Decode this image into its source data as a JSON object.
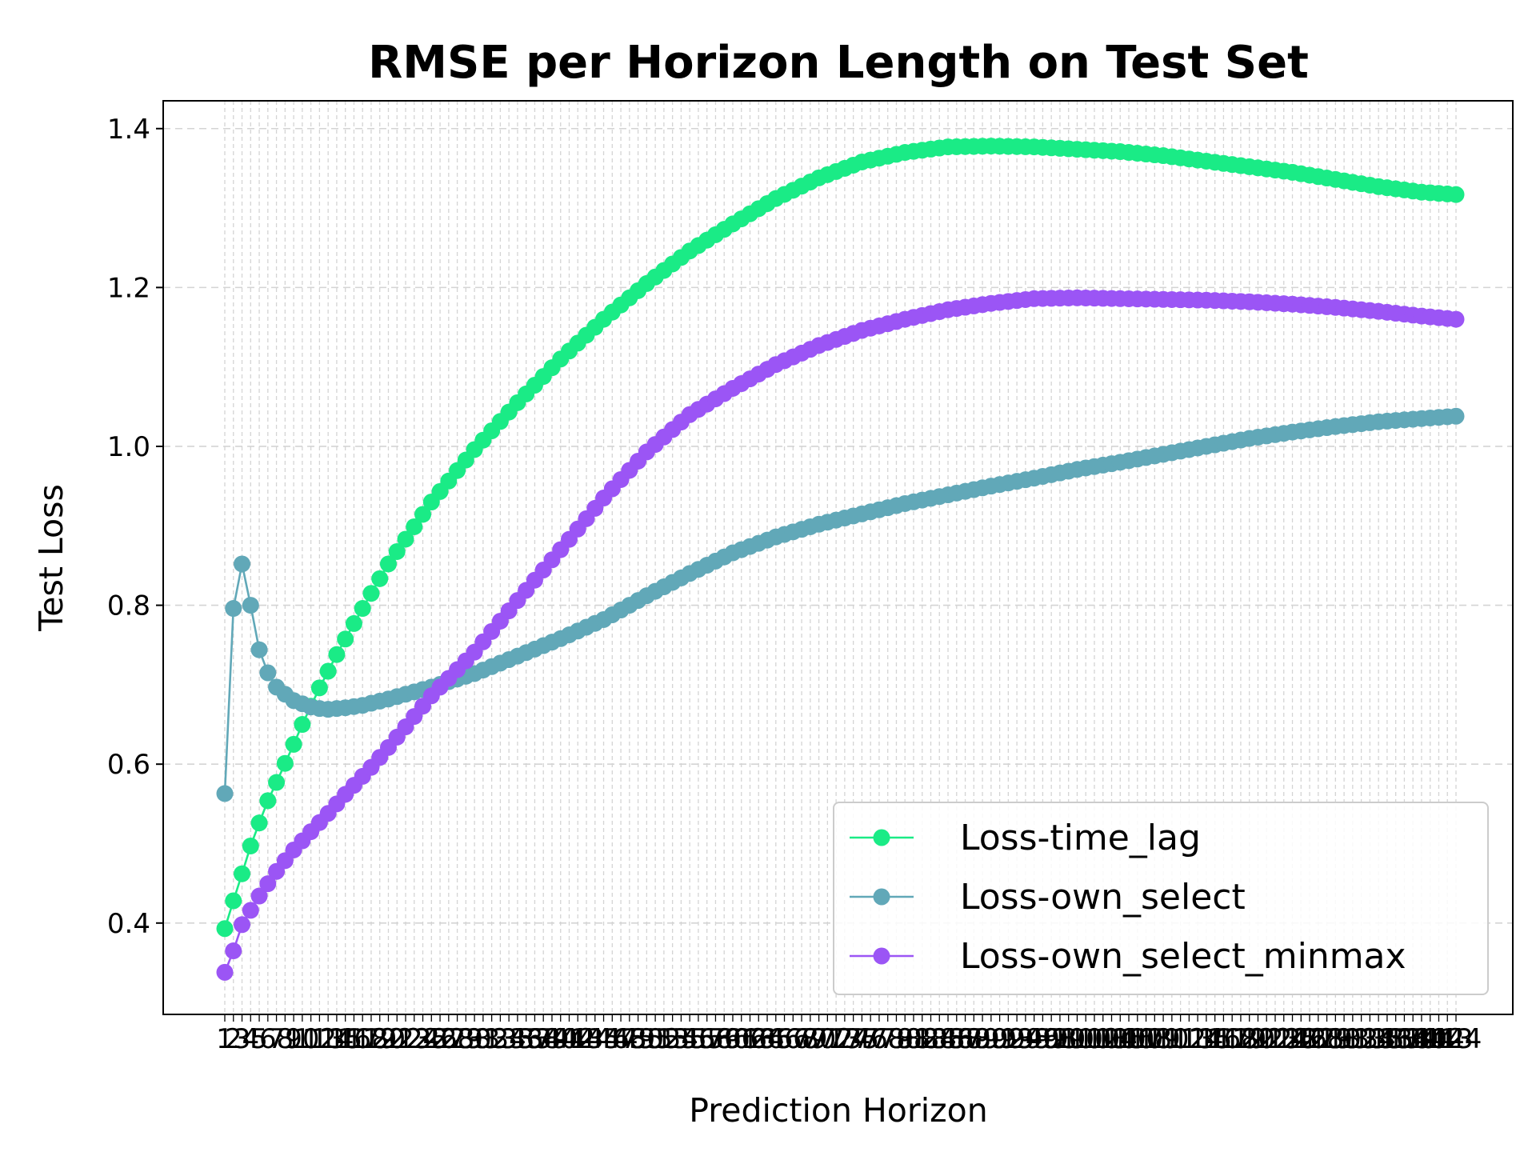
{
  "chart_data": {
    "type": "line",
    "title": "RMSE per Horizon Length on Test Set",
    "xlabel": "Prediction Horizon",
    "ylabel": "Test Loss",
    "xlim": [
      1,
      144
    ],
    "ylim": [
      0.285,
      1.435
    ],
    "yticks": [
      0.4,
      0.6,
      0.8,
      1.0,
      1.2,
      1.4
    ],
    "ytick_labels": [
      "0.4",
      "0.6",
      "0.8",
      "1.0",
      "1.2",
      "1.4"
    ],
    "grid": true,
    "legend_position": "lower-right",
    "markers": true,
    "series": [
      {
        "name": "Loss-time_lag",
        "color": "#1aeb86",
        "anchors": [
          [
            1,
            0.393
          ],
          [
            2,
            0.428
          ],
          [
            3,
            0.462
          ],
          [
            4,
            0.497
          ],
          [
            5,
            0.526
          ],
          [
            6,
            0.554
          ],
          [
            7,
            0.577
          ],
          [
            8,
            0.601
          ],
          [
            9,
            0.625
          ],
          [
            10,
            0.65
          ],
          [
            12,
            0.696
          ],
          [
            14,
            0.738
          ],
          [
            16,
            0.777
          ],
          [
            18,
            0.815
          ],
          [
            20,
            0.852
          ],
          [
            25,
            0.93
          ],
          [
            30,
            0.996
          ],
          [
            35,
            1.055
          ],
          [
            40,
            1.11
          ],
          [
            45,
            1.16
          ],
          [
            50,
            1.205
          ],
          [
            55,
            1.246
          ],
          [
            60,
            1.28
          ],
          [
            65,
            1.312
          ],
          [
            70,
            1.338
          ],
          [
            75,
            1.358
          ],
          [
            80,
            1.37
          ],
          [
            85,
            1.377
          ],
          [
            90,
            1.378
          ],
          [
            95,
            1.377
          ],
          [
            100,
            1.374
          ],
          [
            105,
            1.371
          ],
          [
            110,
            1.366
          ],
          [
            115,
            1.359
          ],
          [
            120,
            1.352
          ],
          [
            125,
            1.345
          ],
          [
            130,
            1.336
          ],
          [
            135,
            1.327
          ],
          [
            140,
            1.32
          ],
          [
            144,
            1.317
          ]
        ]
      },
      {
        "name": "Loss-own_select",
        "color": "#61a8b8",
        "anchors": [
          [
            1,
            0.563
          ],
          [
            2,
            0.796
          ],
          [
            3,
            0.852
          ],
          [
            4,
            0.8
          ],
          [
            5,
            0.744
          ],
          [
            6,
            0.715
          ],
          [
            7,
            0.697
          ],
          [
            8,
            0.688
          ],
          [
            9,
            0.68
          ],
          [
            10,
            0.676
          ],
          [
            11,
            0.672
          ],
          [
            12,
            0.67
          ],
          [
            13,
            0.669
          ],
          [
            15,
            0.671
          ],
          [
            17,
            0.674
          ],
          [
            20,
            0.682
          ],
          [
            25,
            0.697
          ],
          [
            30,
            0.714
          ],
          [
            35,
            0.736
          ],
          [
            40,
            0.758
          ],
          [
            45,
            0.782
          ],
          [
            50,
            0.812
          ],
          [
            55,
            0.84
          ],
          [
            60,
            0.866
          ],
          [
            65,
            0.886
          ],
          [
            70,
            0.902
          ],
          [
            75,
            0.915
          ],
          [
            80,
            0.928
          ],
          [
            85,
            0.939
          ],
          [
            90,
            0.95
          ],
          [
            95,
            0.96
          ],
          [
            100,
            0.971
          ],
          [
            105,
            0.98
          ],
          [
            110,
            0.99
          ],
          [
            115,
            1.0
          ],
          [
            120,
            1.01
          ],
          [
            125,
            1.018
          ],
          [
            130,
            1.025
          ],
          [
            135,
            1.031
          ],
          [
            140,
            1.035
          ],
          [
            144,
            1.038
          ]
        ]
      },
      {
        "name": "Loss-own_select_minmax",
        "color": "#9b55f5",
        "anchors": [
          [
            1,
            0.338
          ],
          [
            2,
            0.365
          ],
          [
            3,
            0.398
          ],
          [
            5,
            0.434
          ],
          [
            7,
            0.465
          ],
          [
            9,
            0.492
          ],
          [
            11,
            0.515
          ],
          [
            13,
            0.538
          ],
          [
            15,
            0.562
          ],
          [
            18,
            0.596
          ],
          [
            20,
            0.621
          ],
          [
            25,
            0.686
          ],
          [
            30,
            0.741
          ],
          [
            35,
            0.806
          ],
          [
            40,
            0.87
          ],
          [
            45,
            0.935
          ],
          [
            50,
            0.993
          ],
          [
            55,
            1.04
          ],
          [
            60,
            1.073
          ],
          [
            65,
            1.103
          ],
          [
            70,
            1.127
          ],
          [
            75,
            1.146
          ],
          [
            80,
            1.16
          ],
          [
            85,
            1.172
          ],
          [
            90,
            1.18
          ],
          [
            95,
            1.186
          ],
          [
            100,
            1.187
          ],
          [
            105,
            1.186
          ],
          [
            110,
            1.185
          ],
          [
            115,
            1.184
          ],
          [
            120,
            1.182
          ],
          [
            125,
            1.179
          ],
          [
            130,
            1.175
          ],
          [
            135,
            1.17
          ],
          [
            140,
            1.164
          ],
          [
            144,
            1.16
          ]
        ]
      }
    ]
  }
}
